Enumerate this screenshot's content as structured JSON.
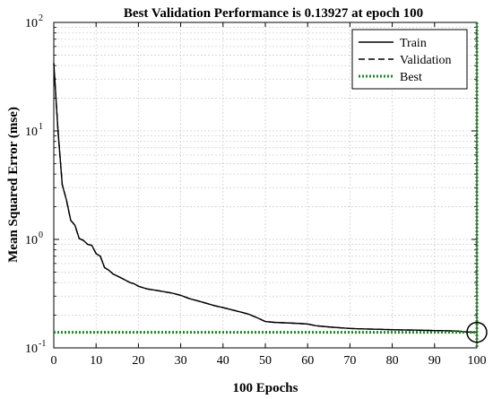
{
  "chart_data": {
    "type": "line",
    "title": "Best Validation Performance is 0.13927 at epoch 100",
    "xlabel": "100 Epochs",
    "ylabel": "Mean Squared Error  (mse)",
    "xlim": [
      0,
      100
    ],
    "ylim": [
      0.1,
      100
    ],
    "yscale": "log",
    "grid": true,
    "legend_position": "top-right",
    "x_ticks": [
      0,
      10,
      20,
      30,
      40,
      50,
      60,
      70,
      80,
      90,
      100
    ],
    "y_ticks": [
      {
        "value": 0.1,
        "base": "10",
        "exp": "-1"
      },
      {
        "value": 1,
        "base": "10",
        "exp": "0"
      },
      {
        "value": 10,
        "base": "10",
        "exp": "1"
      },
      {
        "value": 100,
        "base": "10",
        "exp": "2"
      }
    ],
    "series": [
      {
        "name": "Train",
        "color": "#000000",
        "style": "solid",
        "x": [
          0,
          1,
          2,
          3,
          4,
          5,
          6,
          7,
          8,
          9,
          10,
          11,
          12,
          13,
          14,
          15,
          16,
          17,
          18,
          19,
          20,
          22,
          25,
          28,
          30,
          32,
          35,
          38,
          40,
          42,
          44,
          46,
          48,
          50,
          52,
          55,
          58,
          60,
          62,
          65,
          68,
          70,
          72,
          75,
          78,
          80,
          82,
          85,
          88,
          90,
          92,
          95,
          97,
          98,
          99,
          100
        ],
        "y": [
          42,
          10,
          3.2,
          2.3,
          1.5,
          1.35,
          1.02,
          0.98,
          0.9,
          0.88,
          0.74,
          0.7,
          0.55,
          0.52,
          0.48,
          0.46,
          0.44,
          0.42,
          0.4,
          0.39,
          0.37,
          0.35,
          0.335,
          0.32,
          0.305,
          0.285,
          0.265,
          0.245,
          0.235,
          0.225,
          0.215,
          0.205,
          0.19,
          0.175,
          0.172,
          0.17,
          0.168,
          0.166,
          0.16,
          0.156,
          0.153,
          0.151,
          0.15,
          0.149,
          0.148,
          0.147,
          0.1465,
          0.146,
          0.145,
          0.1445,
          0.144,
          0.143,
          0.141,
          0.14,
          0.1395,
          0.13927
        ]
      },
      {
        "name": "Validation",
        "color": "#000000",
        "style": "dashed",
        "x": [
          0,
          1,
          2,
          3,
          4,
          5,
          6,
          7,
          8,
          9,
          10,
          11,
          12,
          13,
          14,
          15,
          16,
          17,
          18,
          19,
          20,
          22,
          25,
          28,
          30,
          32,
          35,
          38,
          40,
          42,
          44,
          46,
          48,
          50,
          52,
          55,
          58,
          60,
          62,
          65,
          68,
          70,
          72,
          75,
          78,
          80,
          82,
          85,
          88,
          90,
          92,
          95,
          97,
          98,
          99,
          100
        ],
        "y": [
          42,
          10,
          3.2,
          2.3,
          1.5,
          1.35,
          1.02,
          0.98,
          0.9,
          0.88,
          0.74,
          0.7,
          0.55,
          0.52,
          0.48,
          0.46,
          0.44,
          0.42,
          0.4,
          0.39,
          0.37,
          0.35,
          0.335,
          0.32,
          0.305,
          0.285,
          0.265,
          0.245,
          0.235,
          0.225,
          0.215,
          0.205,
          0.19,
          0.175,
          0.172,
          0.17,
          0.168,
          0.166,
          0.16,
          0.156,
          0.153,
          0.151,
          0.15,
          0.149,
          0.148,
          0.147,
          0.1465,
          0.146,
          0.145,
          0.1445,
          0.144,
          0.143,
          0.141,
          0.14,
          0.1395,
          0.13927
        ]
      },
      {
        "name": "Best",
        "color": "#1a8a1a",
        "style": "dotted",
        "best_epoch": 100,
        "best_value": 0.13927
      }
    ]
  }
}
